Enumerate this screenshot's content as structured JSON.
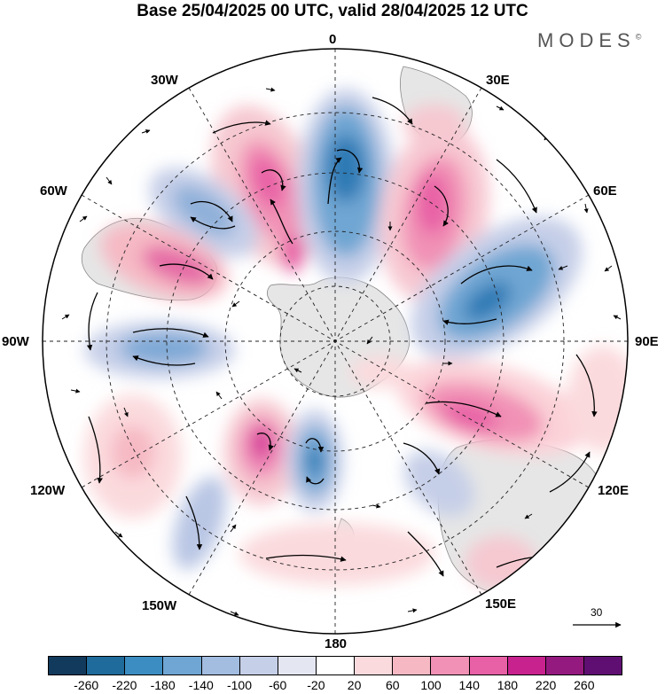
{
  "title": "Base 25/04/2025 00 UTC, valid 28/04/2025 12 UTC",
  "logo": "MODES",
  "logo_mark": "©",
  "longitude_labels": {
    "lon_0": "0",
    "lon_30e": "30E",
    "lon_60e": "60E",
    "lon_90e": "90E",
    "lon_120e": "120E",
    "lon_150e": "150E",
    "lon_180": "180",
    "lon_150w": "150W",
    "lon_120w": "120W",
    "lon_90w": "90W",
    "lon_60w": "60W",
    "lon_30w": "30W"
  },
  "vector_scale": {
    "label": "30"
  },
  "colorbar": {
    "colors": [
      "#123a5c",
      "#1f6b9c",
      "#3c8dc2",
      "#6fa6d3",
      "#a3bde0",
      "#c6cfe8",
      "#e4e6f2",
      "#ffffff",
      "#fbdadd",
      "#f6b9c4",
      "#f191b5",
      "#e860a6",
      "#c8228f",
      "#951a80",
      "#5f0f72"
    ],
    "ticks": [
      "-260",
      "-220",
      "-180",
      "-140",
      "-100",
      "-60",
      "-20",
      "20",
      "60",
      "100",
      "140",
      "180",
      "220",
      "260"
    ]
  },
  "colors": {
    "land": "#e6e6e6",
    "coast": "#777777",
    "grid": "#222222"
  }
}
